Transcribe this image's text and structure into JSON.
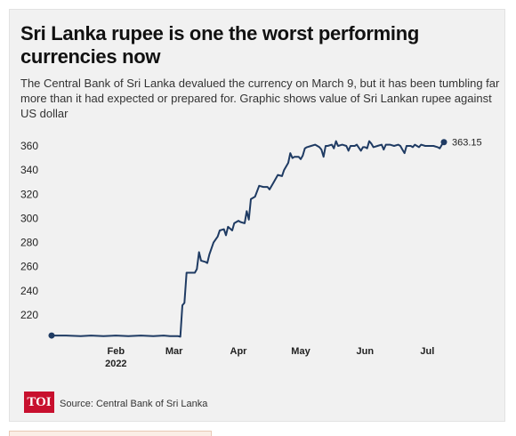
{
  "header": {
    "title": "Sri Lanka rupee is one the worst performing currencies now",
    "subtitle": "The Central Bank of Sri Lanka devalued the currency on March 9, but it has been tumbling far more than it had expected or prepared for. Graphic shows value of Sri Lankan rupee against US dollar"
  },
  "footer": {
    "logo_text": "TOI",
    "source": "Source: Central Bank of Sri Lanka"
  },
  "colors": {
    "line": "#1f3b63",
    "logo": "#c8102e"
  },
  "chart_data": {
    "type": "line",
    "title": "Sri Lanka rupee is one the worst performing currencies now",
    "xlabel": "",
    "ylabel": "",
    "ylim": [
      200,
      365
    ],
    "yticks": [
      220,
      240,
      260,
      280,
      300,
      320,
      340,
      360
    ],
    "grid": false,
    "x_tick_labels": [
      {
        "day": 32,
        "label": "Feb",
        "sub": "2022"
      },
      {
        "day": 60,
        "label": "Mar",
        "sub": ""
      },
      {
        "day": 91,
        "label": "Apr",
        "sub": ""
      },
      {
        "day": 121,
        "label": "May",
        "sub": ""
      },
      {
        "day": 152,
        "label": "Jun",
        "sub": ""
      },
      {
        "day": 182,
        "label": "Jul",
        "sub": ""
      }
    ],
    "end_label": "363.15",
    "series": [
      {
        "points": [
          [
            1,
            203
          ],
          [
            8,
            203
          ],
          [
            15,
            202.5
          ],
          [
            20,
            203
          ],
          [
            26,
            202.5
          ],
          [
            32,
            203
          ],
          [
            38,
            202.5
          ],
          [
            44,
            203
          ],
          [
            50,
            202.5
          ],
          [
            55,
            203
          ],
          [
            58,
            202.5
          ],
          [
            62,
            202.5
          ],
          [
            63,
            202
          ],
          [
            64,
            228
          ],
          [
            65,
            230
          ],
          [
            66,
            255
          ],
          [
            68,
            255
          ],
          [
            70,
            255
          ],
          [
            71,
            258
          ],
          [
            72,
            272
          ],
          [
            73,
            265
          ],
          [
            75,
            264
          ],
          [
            76,
            263
          ],
          [
            77,
            270
          ],
          [
            79,
            280
          ],
          [
            81,
            285
          ],
          [
            82,
            290
          ],
          [
            84,
            291
          ],
          [
            85,
            286
          ],
          [
            86,
            293
          ],
          [
            88,
            290
          ],
          [
            89,
            296
          ],
          [
            91,
            298
          ],
          [
            92,
            297
          ],
          [
            94,
            296
          ],
          [
            95,
            306
          ],
          [
            96,
            299
          ],
          [
            97,
            316
          ],
          [
            99,
            318
          ],
          [
            101,
            327
          ],
          [
            103,
            326
          ],
          [
            105,
            326
          ],
          [
            106,
            324
          ],
          [
            108,
            330
          ],
          [
            110,
            336
          ],
          [
            112,
            335
          ],
          [
            113,
            340
          ],
          [
            115,
            346
          ],
          [
            116,
            354
          ],
          [
            117,
            350
          ],
          [
            118,
            351
          ],
          [
            120,
            351
          ],
          [
            121,
            349
          ],
          [
            122,
            352
          ],
          [
            123,
            358
          ],
          [
            124,
            359
          ],
          [
            126,
            360
          ],
          [
            128,
            361
          ],
          [
            129,
            360
          ],
          [
            130,
            359
          ],
          [
            131,
            357
          ],
          [
            132,
            351
          ],
          [
            133,
            360
          ],
          [
            134,
            360
          ],
          [
            136,
            361
          ],
          [
            137,
            358
          ],
          [
            138,
            364
          ],
          [
            139,
            360
          ],
          [
            141,
            361
          ],
          [
            143,
            360
          ],
          [
            144,
            356
          ],
          [
            145,
            360
          ],
          [
            147,
            360
          ],
          [
            148,
            361
          ],
          [
            150,
            356
          ],
          [
            151,
            359
          ],
          [
            152,
            359
          ],
          [
            153,
            358
          ],
          [
            154,
            364
          ],
          [
            155,
            362
          ],
          [
            156,
            359
          ],
          [
            158,
            360
          ],
          [
            160,
            361
          ],
          [
            161,
            357
          ],
          [
            162,
            361
          ],
          [
            164,
            361
          ],
          [
            166,
            360
          ],
          [
            168,
            361
          ],
          [
            169,
            360
          ],
          [
            170,
            357
          ],
          [
            171,
            354
          ],
          [
            172,
            360
          ],
          [
            174,
            360
          ],
          [
            175,
            359
          ],
          [
            176,
            361
          ],
          [
            178,
            359
          ],
          [
            179,
            361
          ],
          [
            181,
            360
          ],
          [
            183,
            360
          ],
          [
            185,
            360
          ],
          [
            187,
            359
          ],
          [
            188,
            358
          ],
          [
            189,
            361
          ],
          [
            190,
            363.15
          ]
        ]
      }
    ]
  }
}
